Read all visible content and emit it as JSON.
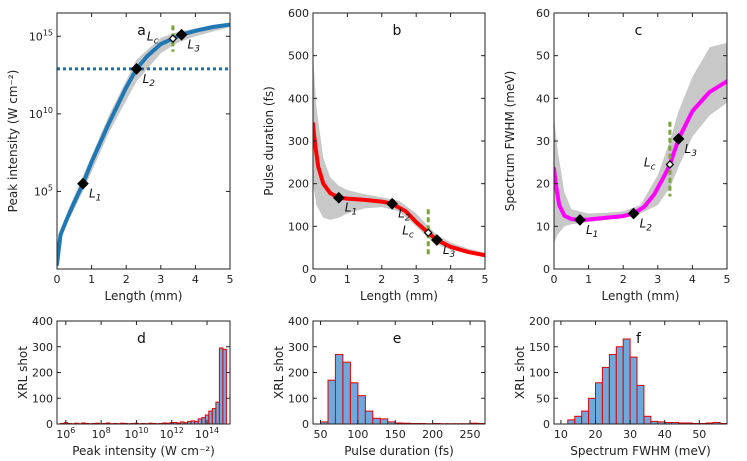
{
  "chart_data": [
    {
      "id": "a",
      "type": "line",
      "letter": "a",
      "xlabel": "Length (mm)",
      "ylabel": "Peak intensity (W cm⁻²)",
      "xlim": [
        0,
        5
      ],
      "ylim_log10": [
        0,
        16.5
      ],
      "xticks": [
        0,
        1,
        2,
        3,
        4,
        5
      ],
      "yticks": [
        {
          "label": "10⁵",
          "base": "10",
          "exp": "5",
          "value": 5
        },
        {
          "label": "10¹⁰",
          "base": "10",
          "exp": "10",
          "value": 10
        },
        {
          "label": "10¹⁵",
          "base": "10",
          "exp": "15",
          "value": 15
        }
      ],
      "series": [
        {
          "name": "peak intensity",
          "color": "#1f77b4",
          "x": [
            0,
            0.1,
            0.3,
            0.5,
            0.75,
            1.0,
            1.5,
            2.0,
            2.3,
            2.6,
            3.0,
            3.35,
            3.6,
            4.0,
            4.5,
            5.0
          ],
          "log10_y": [
            0.3,
            2.2,
            3.3,
            4.3,
            5.5,
            6.9,
            9.4,
            11.7,
            12.9,
            13.7,
            14.5,
            14.85,
            15.1,
            15.35,
            15.6,
            15.75
          ]
        }
      ],
      "band": {
        "color": "#c8c8c8",
        "x": [
          0.3,
          0.75,
          1.5,
          2.3,
          3.0,
          3.5,
          4.0,
          4.5,
          5.0
        ],
        "lower": [
          3.0,
          5.0,
          8.8,
          12.1,
          13.9,
          14.6,
          15.0,
          15.3,
          15.6
        ],
        "upper": [
          3.7,
          6.0,
          9.9,
          13.5,
          14.9,
          15.3,
          15.5,
          15.7,
          15.85
        ]
      },
      "hline": {
        "log10_y": 12.9,
        "color": "#1f6fb5",
        "style": "dotted"
      },
      "vline": {
        "x": 3.35,
        "range": [
          14.0,
          15.7
        ],
        "color": "#7aa33a"
      },
      "markers": [
        {
          "label": "L",
          "sub": "1",
          "x": 0.75,
          "log10_y": 5.5,
          "filled": true
        },
        {
          "label": "L",
          "sub": "2",
          "x": 2.3,
          "log10_y": 12.9,
          "filled": true
        },
        {
          "label": "L",
          "sub": "c",
          "x": 3.35,
          "log10_y": 14.85,
          "filled": false
        },
        {
          "label": "L",
          "sub": "3",
          "x": 3.6,
          "log10_y": 15.1,
          "filled": true
        }
      ]
    },
    {
      "id": "b",
      "type": "line",
      "letter": "b",
      "xlabel": "Length (mm)",
      "ylabel": "Pulse duration (fs)",
      "xlim": [
        0,
        5
      ],
      "ylim": [
        0,
        600
      ],
      "xticks": [
        0,
        1,
        2,
        3,
        4,
        5
      ],
      "yticks": [
        0,
        100,
        200,
        300,
        400,
        500,
        600
      ],
      "series": [
        {
          "name": "pulse duration",
          "color": "#ff0000",
          "x": [
            0,
            0.05,
            0.15,
            0.3,
            0.5,
            0.75,
            1.0,
            1.5,
            2.0,
            2.3,
            2.7,
            3.0,
            3.35,
            3.6,
            4.0,
            4.5,
            5.0
          ],
          "y": [
            340,
            300,
            240,
            200,
            178,
            167,
            165,
            162,
            158,
            153,
            135,
            110,
            85,
            68,
            52,
            40,
            32
          ]
        }
      ],
      "band": {
        "color": "#c8c8c8",
        "x": [
          0,
          0.1,
          0.3,
          0.5,
          0.75,
          1.0,
          1.5,
          2.0,
          2.5,
          3.0,
          3.35,
          3.6,
          4.0,
          4.5,
          5.0
        ],
        "lower": [
          200,
          150,
          120,
          115,
          120,
          130,
          142,
          145,
          135,
          100,
          72,
          58,
          45,
          37,
          30
        ],
        "upper": [
          500,
          380,
          260,
          215,
          195,
          185,
          175,
          168,
          160,
          130,
          100,
          80,
          62,
          48,
          38
        ]
      },
      "vline": {
        "x": 3.35,
        "range": [
          30,
          140
        ],
        "color": "#7aa33a"
      },
      "markers": [
        {
          "label": "L",
          "sub": "1",
          "x": 0.75,
          "y": 167,
          "filled": true
        },
        {
          "label": "L",
          "sub": "2",
          "x": 2.3,
          "y": 153,
          "filled": true
        },
        {
          "label": "L",
          "sub": "c",
          "x": 3.35,
          "y": 85,
          "filled": false
        },
        {
          "label": "L",
          "sub": "3",
          "x": 3.6,
          "y": 68,
          "filled": true
        }
      ]
    },
    {
      "id": "c",
      "type": "line",
      "letter": "c",
      "xlabel": "Length (mm)",
      "ylabel": "Spectrum FWHM (meV)",
      "xlim": [
        0,
        5
      ],
      "ylim": [
        0,
        60
      ],
      "xticks": [
        0,
        1,
        2,
        3,
        4,
        5
      ],
      "yticks": [
        0,
        10,
        20,
        30,
        40,
        50,
        60
      ],
      "series": [
        {
          "name": "spectrum FWHM",
          "color": "#ff00ff",
          "x": [
            0,
            0.05,
            0.15,
            0.3,
            0.5,
            0.75,
            1.0,
            1.5,
            2.0,
            2.3,
            2.6,
            2.9,
            3.2,
            3.35,
            3.6,
            4.0,
            4.5,
            5.0
          ],
          "y": [
            23.5,
            20,
            15,
            12.5,
            11.7,
            11.5,
            11.6,
            12,
            12.4,
            13,
            14.5,
            17.5,
            22,
            24.5,
            30.5,
            37,
            41.5,
            44
          ]
        }
      ],
      "band": {
        "color": "#c8c8c8",
        "x": [
          0,
          0.1,
          0.3,
          0.5,
          1.0,
          1.5,
          2.0,
          2.5,
          3.0,
          3.35,
          3.6,
          4.0,
          4.5,
          5.0
        ],
        "lower": [
          6,
          8,
          10,
          10.5,
          11,
          11.5,
          12,
          13,
          15,
          19,
          24,
          31,
          36,
          39
        ],
        "upper": [
          36,
          28,
          18,
          14,
          13,
          13.2,
          13.5,
          15,
          22,
          30,
          37,
          45,
          52,
          53
        ]
      },
      "vline": {
        "x": 3.35,
        "range": [
          17,
          34.5
        ],
        "color": "#7aa33a"
      },
      "markers": [
        {
          "label": "L",
          "sub": "1",
          "x": 0.75,
          "y": 11.5,
          "filled": true
        },
        {
          "label": "L",
          "sub": "2",
          "x": 2.3,
          "y": 13,
          "filled": true
        },
        {
          "label": "L",
          "sub": "c",
          "x": 3.35,
          "y": 24.5,
          "filled": false
        },
        {
          "label": "L",
          "sub": "3",
          "x": 3.6,
          "y": 30.5,
          "filled": true
        }
      ]
    },
    {
      "id": "d",
      "type": "bar",
      "letter": "d",
      "xlabel": "Peak intensity (W cm⁻²)",
      "ylabel": "XRL shot",
      "xscale": "log",
      "xlim_log10": [
        5.5,
        15.3
      ],
      "ylim": [
        0,
        400
      ],
      "xticks": [
        {
          "label": "10⁶",
          "base": "10",
          "exp": "6",
          "value": 6
        },
        {
          "label": "10⁸",
          "base": "10",
          "exp": "8",
          "value": 8
        },
        {
          "label": "10¹⁰",
          "base": "10",
          "exp": "10",
          "value": 10
        },
        {
          "label": "10¹²",
          "base": "10",
          "exp": "12",
          "value": 12
        },
        {
          "label": "10¹⁴",
          "base": "10",
          "exp": "14",
          "value": 14
        }
      ],
      "yticks": [
        0,
        100,
        200,
        300,
        400
      ],
      "bin_width_log10": 0.2,
      "bin_start_log10": [
        5.7,
        5.9,
        6.1,
        6.3,
        6.5,
        6.7,
        6.9,
        7.1,
        7.3,
        7.5,
        7.7,
        7.9,
        8.1,
        8.3,
        8.5,
        8.7,
        8.9,
        9.1,
        9.3,
        9.5,
        9.7,
        9.9,
        10.1,
        10.3,
        10.5,
        10.7,
        10.9,
        11.1,
        11.3,
        11.5,
        11.7,
        11.9,
        12.1,
        12.3,
        12.5,
        12.7,
        12.9,
        13.1,
        13.3,
        13.5,
        13.7,
        13.9,
        14.1,
        14.3,
        14.5,
        14.7,
        14.9
      ],
      "values": [
        2,
        5,
        2,
        1,
        3,
        1,
        4,
        2,
        1,
        2,
        3,
        1,
        2,
        4,
        1,
        2,
        1,
        3,
        2,
        1,
        2,
        3,
        1,
        2,
        1,
        3,
        2,
        1,
        2,
        4,
        3,
        5,
        6,
        4,
        8,
        5,
        10,
        12,
        10,
        20,
        25,
        35,
        50,
        60,
        85,
        295,
        290
      ],
      "bar_color": "#6fa8dc",
      "edge_color": "#e00000"
    },
    {
      "id": "e",
      "type": "bar",
      "letter": "e",
      "xlabel": "Pulse duration (fs)",
      "ylabel": "XRL shot",
      "xlim": [
        40,
        270
      ],
      "ylim": [
        0,
        400
      ],
      "xticks": [
        50,
        100,
        150,
        200,
        250
      ],
      "yticks": [
        0,
        100,
        200,
        300,
        400
      ],
      "bin_width": 10,
      "bin_start": [
        50,
        60,
        70,
        80,
        90,
        100,
        110,
        120,
        130,
        140,
        150,
        160,
        170,
        180,
        190,
        200,
        210,
        220,
        230,
        240,
        250,
        260
      ],
      "values": [
        8,
        170,
        270,
        240,
        160,
        110,
        50,
        22,
        20,
        8,
        4,
        3,
        2,
        2,
        1,
        2,
        1,
        1,
        1,
        1,
        3,
        2
      ],
      "bar_color": "#6fa8dc",
      "edge_color": "#e00000"
    },
    {
      "id": "f",
      "type": "bar",
      "letter": "f",
      "xlabel": "Spectrum FWHM (meV)",
      "ylabel": "XRL shot",
      "xlim": [
        8,
        58
      ],
      "ylim": [
        0,
        200
      ],
      "xticks": [
        10,
        20,
        30,
        40,
        50
      ],
      "yticks": [
        0,
        50,
        100,
        150,
        200
      ],
      "bin_width": 2,
      "bin_start": [
        12,
        14,
        16,
        18,
        20,
        22,
        24,
        26,
        28,
        30,
        32,
        34,
        36,
        38,
        40,
        42,
        44,
        46,
        48,
        50,
        52,
        54,
        56
      ],
      "values": [
        8,
        15,
        25,
        50,
        80,
        110,
        135,
        150,
        165,
        130,
        75,
        15,
        5,
        4,
        3,
        3,
        2,
        2,
        1,
        1,
        2,
        3,
        1
      ],
      "bar_color": "#6fa8dc",
      "edge_color": "#e00000"
    }
  ]
}
